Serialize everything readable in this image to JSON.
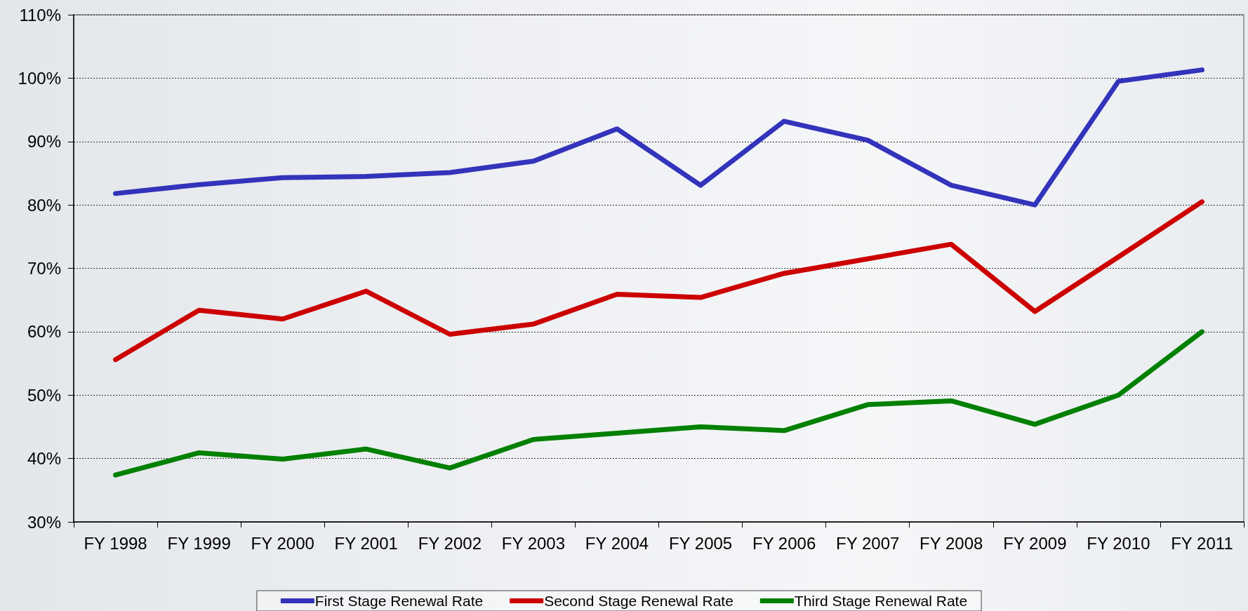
{
  "chart_data": {
    "type": "line",
    "categories": [
      "FY 1998",
      "FY 1999",
      "FY 2000",
      "FY 2001",
      "FY 2002",
      "FY 2003",
      "FY 2004",
      "FY 2005",
      "FY 2006",
      "FY 2007",
      "FY 2008",
      "FY 2009",
      "FY 2010",
      "FY 2011"
    ],
    "series": [
      {
        "name": "First Stage Renewal Rate",
        "color": "#3333bb",
        "values": [
          81.8,
          83.2,
          84.3,
          84.5,
          85.1,
          86.9,
          92.0,
          83.1,
          93.2,
          90.2,
          83.1,
          80.0,
          99.5,
          101.3
        ]
      },
      {
        "name": "Second Stage Renewal Rate",
        "color": "#cc0000",
        "values": [
          55.6,
          63.4,
          62.0,
          66.4,
          59.6,
          61.2,
          65.9,
          65.4,
          69.2,
          71.5,
          73.8,
          63.2,
          71.8,
          80.5
        ]
      },
      {
        "name": "Third Stage Renewal Rate",
        "color": "#008000",
        "values": [
          37.4,
          40.9,
          39.9,
          41.5,
          38.5,
          43.0,
          44.0,
          45.0,
          44.4,
          48.5,
          49.1,
          45.4,
          50.0,
          60.0
        ]
      }
    ],
    "ylim": [
      30,
      110
    ],
    "yticks": [
      {
        "value": 30,
        "label": "30%"
      },
      {
        "value": 40,
        "label": "40%"
      },
      {
        "value": 50,
        "label": "50%"
      },
      {
        "value": 60,
        "label": "60%"
      },
      {
        "value": 70,
        "label": "70%"
      },
      {
        "value": 80,
        "label": "80%"
      },
      {
        "value": 90,
        "label": "90%"
      },
      {
        "value": 100,
        "label": "100%"
      },
      {
        "value": 110,
        "label": "110%"
      }
    ],
    "grid": "y",
    "legend": "bottom",
    "marker": "none",
    "line_style": "solid"
  }
}
